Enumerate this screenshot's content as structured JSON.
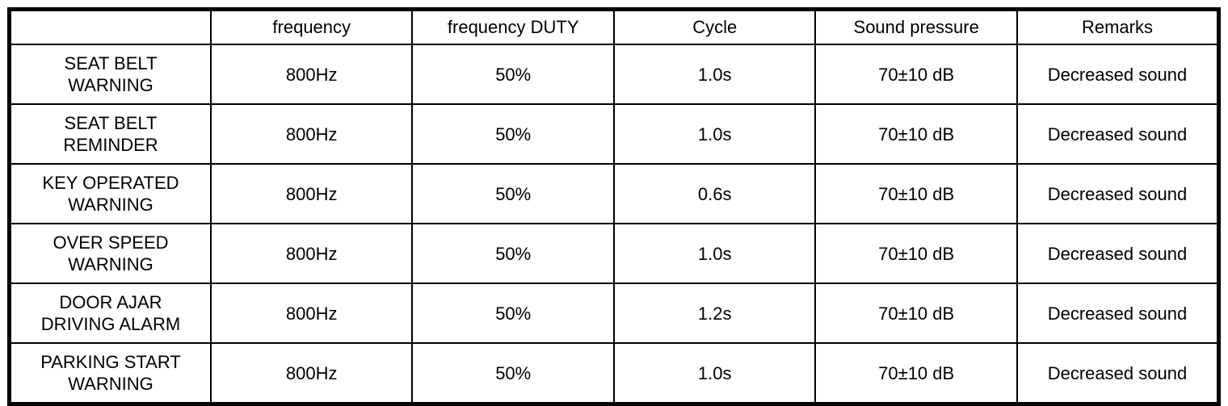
{
  "colors": {
    "background": "#ffffff",
    "border": "#000000",
    "text": "#000000"
  },
  "table": {
    "headers": {
      "name": "",
      "frequency": "frequency",
      "duty": "frequency DUTY",
      "cycle": "Cycle",
      "sound_pressure": "Sound pressure",
      "remarks": "Remarks"
    },
    "rows": [
      {
        "name": "SEAT BELT\nWARNING",
        "frequency": "800Hz",
        "duty": "50%",
        "cycle": "1.0s",
        "sound_pressure": "70±10 dB",
        "remarks": "Decreased sound"
      },
      {
        "name": "SEAT BELT\nREMINDER",
        "frequency": "800Hz",
        "duty": "50%",
        "cycle": "1.0s",
        "sound_pressure": "70±10 dB",
        "remarks": "Decreased sound"
      },
      {
        "name": "KEY OPERATED\nWARNING",
        "frequency": "800Hz",
        "duty": "50%",
        "cycle": "0.6s",
        "sound_pressure": "70±10 dB",
        "remarks": "Decreased sound"
      },
      {
        "name": "OVER SPEED\nWARNING",
        "frequency": "800Hz",
        "duty": "50%",
        "cycle": "1.0s",
        "sound_pressure": "70±10 dB",
        "remarks": "Decreased sound"
      },
      {
        "name": "DOOR AJAR\nDRIVING ALARM",
        "frequency": "800Hz",
        "duty": "50%",
        "cycle": "1.2s",
        "sound_pressure": "70±10 dB",
        "remarks": "Decreased sound"
      },
      {
        "name": "PARKING START\nWARNING",
        "frequency": "800Hz",
        "duty": "50%",
        "cycle": "1.0s",
        "sound_pressure": "70±10 dB",
        "remarks": "Decreased sound"
      }
    ]
  }
}
